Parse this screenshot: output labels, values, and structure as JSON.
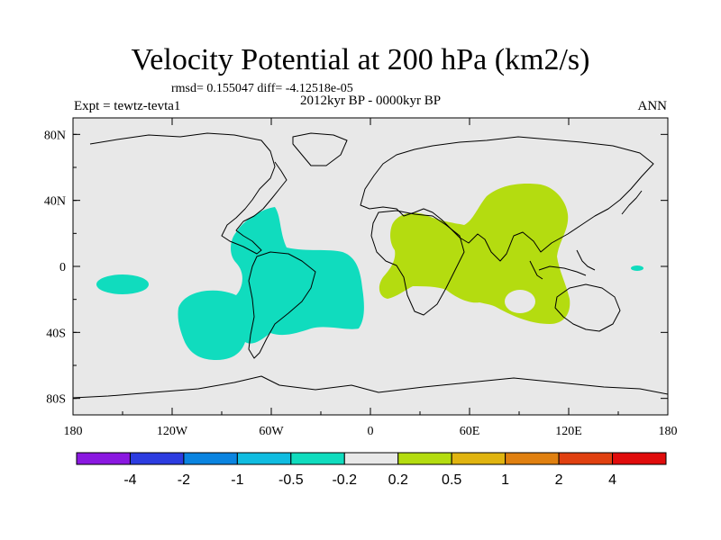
{
  "title": "Velocity Potential at 200 hPa (km2/s)",
  "stats_text": "rmsd= 0.155047 diff= -4.12518e-05",
  "experiment": "Expt = tewtz-tevta1",
  "period": "2012kyr BP - 0000kyr BP",
  "season": "ANN",
  "map": {
    "projection": "cylindrical equidistant",
    "lon_range": [
      -180,
      180
    ],
    "lat_range": [
      -90,
      90
    ],
    "background_color": "#e8e8e8",
    "lon_ticks": [
      {
        "value": -180,
        "label": "180"
      },
      {
        "value": -120,
        "label": "120W"
      },
      {
        "value": -60,
        "label": "60W"
      },
      {
        "value": 0,
        "label": "0"
      },
      {
        "value": 60,
        "label": "60E"
      },
      {
        "value": 120,
        "label": "120E"
      },
      {
        "value": 180,
        "label": "180"
      }
    ],
    "lat_ticks": [
      {
        "value": 80,
        "label": "80N"
      },
      {
        "value": 40,
        "label": "40N"
      },
      {
        "value": 0,
        "label": "0"
      },
      {
        "value": -40,
        "label": "40S"
      },
      {
        "value": -80,
        "label": "80S"
      }
    ]
  },
  "chart_data": {
    "type": "heatmap",
    "title": "Velocity Potential at 200 hPa (km2/s)",
    "variable": "velocity potential difference",
    "units": "km2/s",
    "level": "200 hPa",
    "regions": [
      {
        "name": "Americas / Atlantic negative region",
        "class": "-0.5 to -0.2",
        "color": "#10dcbe",
        "lon_range": [
          -115,
          -15
        ],
        "lat_range": [
          -55,
          35
        ]
      },
      {
        "name": "Central Pacific negative patch",
        "class": "-0.5 to -0.2",
        "color": "#10dcbe",
        "lon_range": [
          -165,
          -140
        ],
        "lat_range": [
          -15,
          -5
        ]
      },
      {
        "name": "Western Pacific small negative patch",
        "class": "-0.5 to -0.2",
        "color": "#10dcbe",
        "lon_range": [
          160,
          165
        ],
        "lat_range": [
          -2,
          0
        ]
      },
      {
        "name": "Africa / Indian Ocean / South Asia positive region",
        "class": "0.2 to 0.5",
        "color": "#b4dc10",
        "lon_range": [
          -5,
          120
        ],
        "lat_range": [
          -35,
          50
        ]
      }
    ],
    "colorbar": {
      "labels": [
        "-4",
        "-2",
        "-1",
        "-0.5",
        "-0.2",
        "0.2",
        "0.5",
        "1",
        "2",
        "4"
      ],
      "colors": [
        "#8a18e0",
        "#2c3ce0",
        "#0a84e0",
        "#10bce0",
        "#10dcbe",
        "#e8e8e8",
        "#b4dc10",
        "#e0b410",
        "#e08010",
        "#e04010",
        "#e00c0c"
      ]
    }
  }
}
